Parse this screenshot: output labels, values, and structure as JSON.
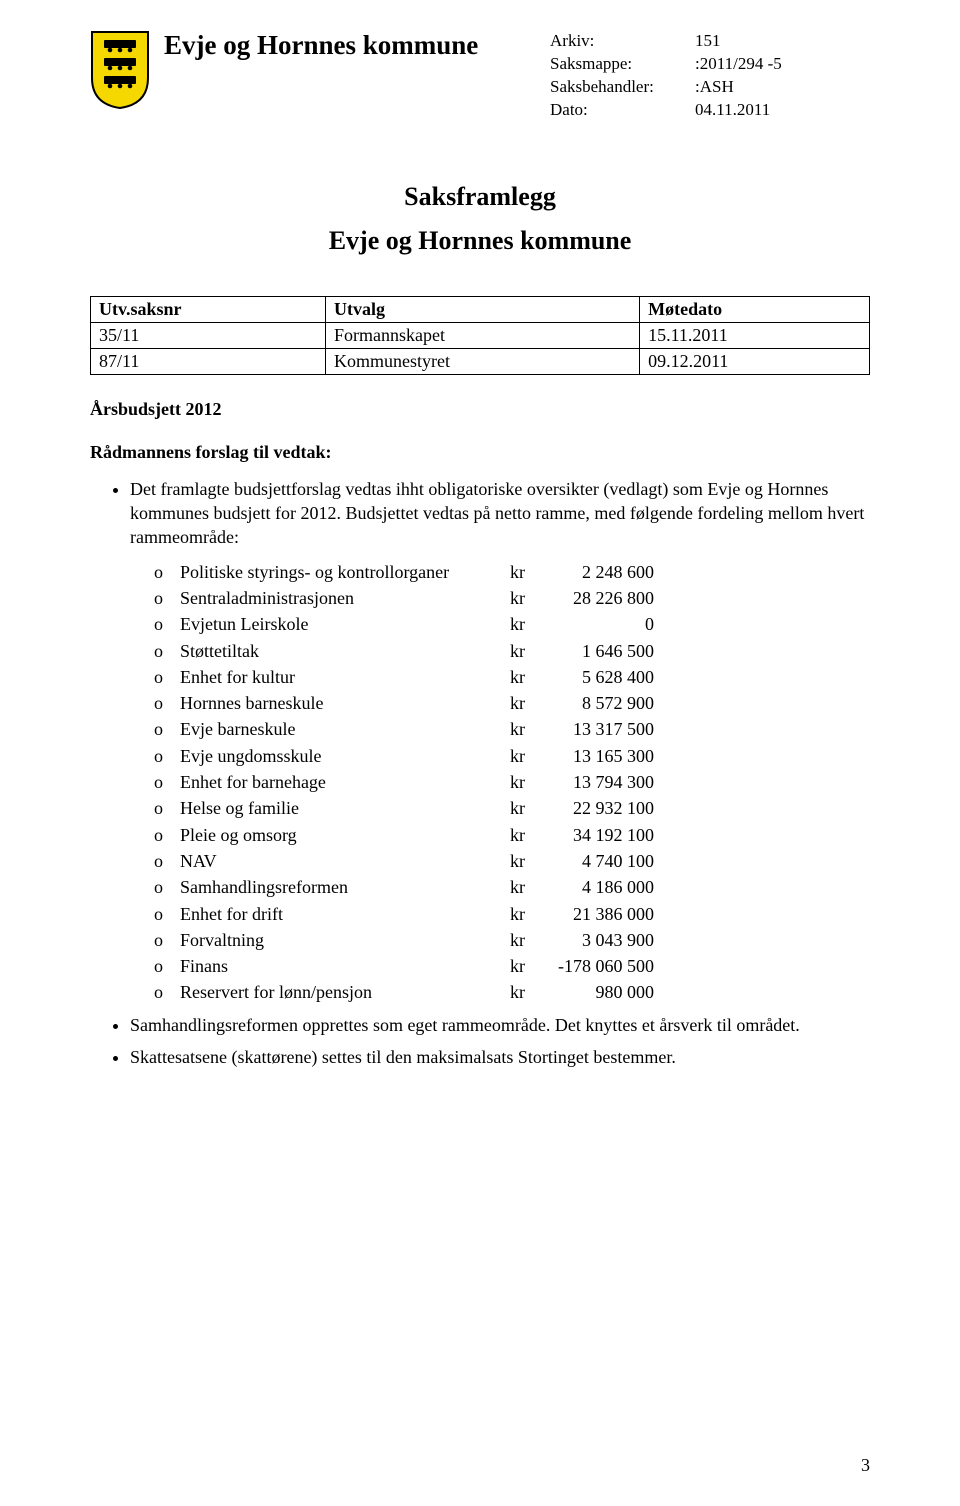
{
  "header": {
    "kommune_name": "Evje og Hornnes kommune",
    "meta": [
      {
        "label": "Arkiv:",
        "value": "151"
      },
      {
        "label": "Saksmappe:",
        "value": ":2011/294 -5"
      },
      {
        "label": "Saksbehandler:",
        "value": ":ASH"
      },
      {
        "label": "Dato:",
        "value": "04.11.2011"
      }
    ]
  },
  "crest": {
    "shield_color": "#f5d800",
    "border_color": "#000000",
    "wagon_color": "#000000"
  },
  "titles": {
    "doc_title": "Saksframlegg",
    "doc_subtitle": "Evje og Hornnes kommune"
  },
  "utvalg_table": {
    "headers": [
      "Utv.saksnr",
      "Utvalg",
      "Møtedato"
    ],
    "rows": [
      [
        "35/11",
        "Formannskapet",
        "15.11.2011"
      ],
      [
        "87/11",
        "Kommunestyret",
        "09.12.2011"
      ]
    ]
  },
  "sak_title": "Årsbudsjett 2012",
  "sub_heading": "Rådmannens forslag til vedtak:",
  "bullet_1_intro": "Det framlagte budsjettforslag vedtas ihht obligatoriske oversikter (vedlagt) som Evje og Hornnes kommunes budsjett for 2012. Budsjettet vedtas på netto ramme, med følgende fordeling mellom hvert rammeområde:",
  "budget_items": [
    {
      "label": "Politiske styrings- og kontrollorganer",
      "amount": "2 248 600"
    },
    {
      "label": "Sentraladministrasjonen",
      "amount": "28 226 800"
    },
    {
      "label": "Evjetun Leirskole",
      "amount": "0"
    },
    {
      "label": "Støttetiltak",
      "amount": "1 646 500"
    },
    {
      "label": "Enhet for kultur",
      "amount": "5 628 400"
    },
    {
      "label": "Hornnes barneskule",
      "amount": "8 572 900"
    },
    {
      "label": "Evje barneskule",
      "amount": "13 317 500"
    },
    {
      "label": "Evje ungdomsskule",
      "amount": "13 165 300"
    },
    {
      "label": "Enhet for barnehage",
      "amount": "13 794 300"
    },
    {
      "label": "Helse og familie",
      "amount": "22 932 100"
    },
    {
      "label": "Pleie og omsorg",
      "amount": "34 192 100"
    },
    {
      "label": "NAV",
      "amount": "4 740 100"
    },
    {
      "label": "Samhandlingsreformen",
      "amount": "4 186 000"
    },
    {
      "label": "Enhet for drift",
      "amount": "21 386 000"
    },
    {
      "label": "Forvaltning",
      "amount": "3 043 900"
    },
    {
      "label": "Finans",
      "amount": "-178 060 500",
      "kr_prefix": "kr"
    },
    {
      "label": "Reservert for lønn/pensjon",
      "amount": "980 000"
    }
  ],
  "bullet_2": "Samhandlingsreformen opprettes som eget rammeområde. Det knyttes et årsverk til området.",
  "bullet_3": "Skattesatsene (skattørene) settes til den maksimalsats Stortinget bestemmer.",
  "kr_label": "kr",
  "circ_marker": "o",
  "page_number": "3"
}
